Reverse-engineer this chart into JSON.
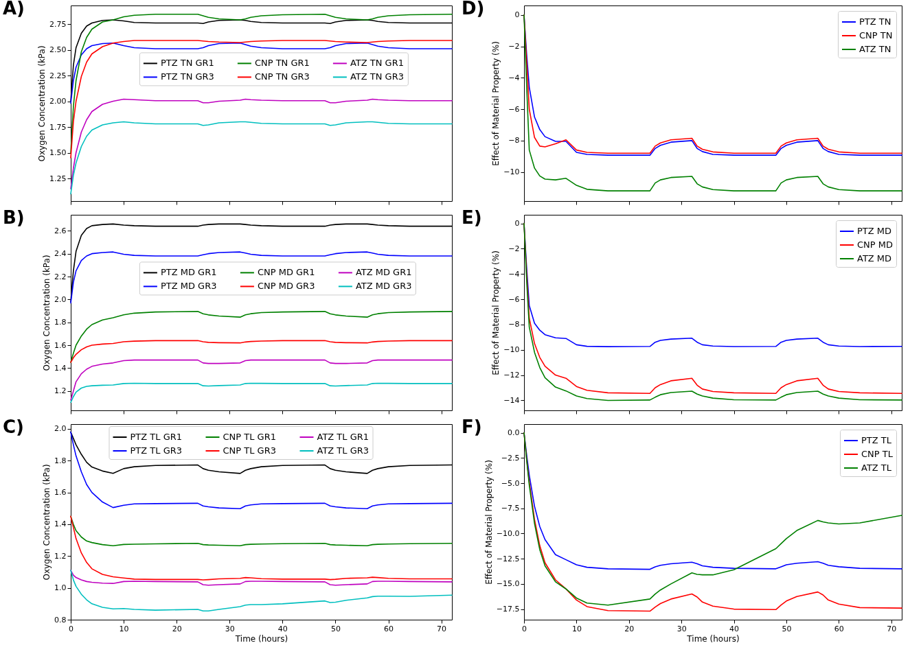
{
  "chart_data": [
    {
      "type": "line",
      "title": "A)",
      "ylabel": "Oxygen Concentration (kPa)",
      "legend": "center",
      "tick_labels": "y",
      "x": [
        0,
        0.5,
        1,
        2,
        3,
        4,
        6,
        8,
        10,
        12,
        16,
        24,
        25,
        26,
        28,
        32,
        33,
        34,
        36,
        40,
        48,
        49,
        50,
        52,
        56,
        57,
        58,
        60,
        64,
        72
      ],
      "xlim": [
        0,
        72
      ],
      "xticks": [
        {
          "value": 0,
          "label": null
        },
        {
          "value": 10,
          "label": null
        },
        {
          "value": 20,
          "label": null
        },
        {
          "value": 30,
          "label": null
        },
        {
          "value": 40,
          "label": null
        },
        {
          "value": 50,
          "label": null
        },
        {
          "value": 60,
          "label": null
        },
        {
          "value": 70,
          "label": null
        }
      ],
      "ylim": [
        1.03,
        2.93
      ],
      "yticks": [
        1.25,
        {
          "value": 1.5,
          "label": "1.50"
        },
        1.75,
        {
          "value": 2,
          "label": "2.00"
        },
        2.25,
        {
          "value": 2.5,
          "label": "2.50"
        },
        2.75
      ],
      "series": [
        {
          "name": "PTZ TN GR1",
          "color": "#000000",
          "values": [
            2.0,
            2.35,
            2.52,
            2.66,
            2.73,
            2.76,
            2.785,
            2.79,
            2.78,
            2.765,
            2.76,
            2.76,
            2.755,
            2.77,
            2.785,
            2.79,
            2.785,
            2.775,
            2.765,
            2.76,
            2.76,
            2.755,
            2.77,
            2.785,
            2.79,
            2.785,
            2.775,
            2.765,
            2.76,
            2.76
          ]
        },
        {
          "name": "PTZ TN GR3",
          "color": "#0000ff",
          "values": [
            1.98,
            2.2,
            2.33,
            2.45,
            2.51,
            2.54,
            2.56,
            2.565,
            2.54,
            2.52,
            2.51,
            2.51,
            2.52,
            2.54,
            2.56,
            2.565,
            2.55,
            2.535,
            2.52,
            2.51,
            2.51,
            2.52,
            2.54,
            2.56,
            2.565,
            2.55,
            2.535,
            2.52,
            2.51,
            2.51
          ]
        },
        {
          "name": "CNP TN GR1",
          "color": "#008000",
          "values": [
            1.5,
            1.95,
            2.2,
            2.48,
            2.62,
            2.7,
            2.77,
            2.79,
            2.82,
            2.835,
            2.845,
            2.845,
            2.83,
            2.815,
            2.8,
            2.79,
            2.8,
            2.815,
            2.83,
            2.84,
            2.845,
            2.83,
            2.815,
            2.8,
            2.79,
            2.8,
            2.815,
            2.83,
            2.84,
            2.845
          ]
        },
        {
          "name": "CNP TN GR3",
          "color": "#ff0000",
          "values": [
            1.45,
            1.8,
            2.0,
            2.24,
            2.38,
            2.46,
            2.53,
            2.565,
            2.58,
            2.59,
            2.59,
            2.59,
            2.585,
            2.58,
            2.575,
            2.57,
            2.575,
            2.58,
            2.585,
            2.59,
            2.59,
            2.585,
            2.58,
            2.575,
            2.57,
            2.575,
            2.58,
            2.585,
            2.59,
            2.59
          ]
        },
        {
          "name": "ATZ TN GR1",
          "color": "#bf00bf",
          "values": [
            1.15,
            1.35,
            1.5,
            1.7,
            1.82,
            1.9,
            1.97,
            2.0,
            2.02,
            2.015,
            2.005,
            2.005,
            1.985,
            1.985,
            2.0,
            2.01,
            2.02,
            2.015,
            2.01,
            2.005,
            2.005,
            1.985,
            1.985,
            2.0,
            2.01,
            2.02,
            2.015,
            2.01,
            2.005,
            2.005
          ]
        },
        {
          "name": "ATZ TN GR3",
          "color": "#00bfbf",
          "values": [
            1.1,
            1.28,
            1.4,
            1.56,
            1.66,
            1.72,
            1.77,
            1.79,
            1.8,
            1.79,
            1.78,
            1.78,
            1.765,
            1.77,
            1.79,
            1.8,
            1.8,
            1.795,
            1.785,
            1.78,
            1.78,
            1.765,
            1.77,
            1.79,
            1.8,
            1.8,
            1.795,
            1.785,
            1.78,
            1.78
          ]
        }
      ]
    },
    {
      "type": "line",
      "title": "D)",
      "ylabel": "Effect of Material Property (%)",
      "legend": "top right",
      "tick_labels": "y",
      "x": [
        0,
        0.5,
        1,
        2,
        3,
        4,
        6,
        8,
        10,
        12,
        16,
        24,
        25,
        26,
        28,
        32,
        33,
        34,
        36,
        40,
        48,
        49,
        50,
        52,
        56,
        57,
        58,
        60,
        64,
        72
      ],
      "xlim": [
        0,
        72
      ],
      "xticks": [
        {
          "value": 0,
          "label": null
        },
        {
          "value": 10,
          "label": null
        },
        {
          "value": 20,
          "label": null
        },
        {
          "value": 30,
          "label": null
        },
        {
          "value": 40,
          "label": null
        },
        {
          "value": 50,
          "label": null
        },
        {
          "value": 60,
          "label": null
        },
        {
          "value": 70,
          "label": null
        }
      ],
      "ylim": [
        -11.85,
        0.6
      ],
      "yticks": [
        {
          "value": -10,
          "label": "−10"
        },
        {
          "value": -8,
          "label": "−8"
        },
        {
          "value": -6,
          "label": "−6"
        },
        {
          "value": -4,
          "label": "−4"
        },
        {
          "value": -2,
          "label": "−2"
        },
        0
      ],
      "series": [
        {
          "name": "PTZ TN",
          "color": "#0000ff",
          "values": [
            0,
            -2.5,
            -4.6,
            -6.5,
            -7.3,
            -7.75,
            -8.05,
            -8.05,
            -8.75,
            -8.88,
            -8.93,
            -8.93,
            -8.5,
            -8.3,
            -8.1,
            -8.0,
            -8.5,
            -8.7,
            -8.88,
            -8.93,
            -8.93,
            -8.5,
            -8.3,
            -8.1,
            -8.0,
            -8.5,
            -8.7,
            -8.88,
            -8.93,
            -8.93
          ]
        },
        {
          "name": "CNP TN",
          "color": "#ff0000",
          "values": [
            0,
            -3.0,
            -6.0,
            -7.8,
            -8.35,
            -8.4,
            -8.2,
            -7.95,
            -8.6,
            -8.75,
            -8.8,
            -8.8,
            -8.35,
            -8.15,
            -7.95,
            -7.85,
            -8.35,
            -8.55,
            -8.72,
            -8.8,
            -8.8,
            -8.35,
            -8.15,
            -7.95,
            -7.85,
            -8.35,
            -8.55,
            -8.72,
            -8.8,
            -8.8
          ]
        },
        {
          "name": "ATZ TN",
          "color": "#008000",
          "values": [
            0,
            -4.5,
            -8.6,
            -9.75,
            -10.25,
            -10.45,
            -10.5,
            -10.4,
            -10.85,
            -11.1,
            -11.2,
            -11.2,
            -10.7,
            -10.5,
            -10.35,
            -10.28,
            -10.75,
            -10.95,
            -11.12,
            -11.2,
            -11.2,
            -10.7,
            -10.5,
            -10.35,
            -10.28,
            -10.75,
            -10.95,
            -11.12,
            -11.2,
            -11.2
          ]
        }
      ]
    },
    {
      "type": "line",
      "title": "B)",
      "ylabel": "Oxygen Concentration (kPa)",
      "legend": "center",
      "tick_labels": "y",
      "x": [
        0,
        0.5,
        1,
        2,
        3,
        4,
        6,
        8,
        10,
        12,
        16,
        24,
        25,
        26,
        28,
        32,
        33,
        34,
        36,
        40,
        48,
        49,
        50,
        52,
        56,
        57,
        58,
        60,
        64,
        72
      ],
      "xlim": [
        0,
        72
      ],
      "xticks": [
        {
          "value": 0,
          "label": null
        },
        {
          "value": 10,
          "label": null
        },
        {
          "value": 20,
          "label": null
        },
        {
          "value": 30,
          "label": null
        },
        {
          "value": 40,
          "label": null
        },
        {
          "value": 50,
          "label": null
        },
        {
          "value": 60,
          "label": null
        },
        {
          "value": 70,
          "label": null
        }
      ],
      "ylim": [
        1.03,
        2.74
      ],
      "yticks": [
        1.2,
        1.4,
        1.6,
        1.8,
        {
          "value": 2,
          "label": "2.0"
        },
        2.2,
        2.4,
        2.6
      ],
      "series": [
        {
          "name": "PTZ MD GR1",
          "color": "#000000",
          "values": [
            1.98,
            2.25,
            2.42,
            2.56,
            2.62,
            2.645,
            2.655,
            2.66,
            2.65,
            2.645,
            2.64,
            2.64,
            2.65,
            2.655,
            2.66,
            2.66,
            2.655,
            2.65,
            2.645,
            2.64,
            2.64,
            2.65,
            2.655,
            2.66,
            2.66,
            2.655,
            2.65,
            2.645,
            2.64,
            2.64
          ]
        },
        {
          "name": "PTZ MD GR3",
          "color": "#0000ff",
          "values": [
            1.97,
            2.15,
            2.25,
            2.34,
            2.38,
            2.4,
            2.41,
            2.415,
            2.395,
            2.385,
            2.38,
            2.38,
            2.39,
            2.4,
            2.41,
            2.415,
            2.405,
            2.395,
            2.385,
            2.38,
            2.38,
            2.39,
            2.4,
            2.41,
            2.415,
            2.405,
            2.395,
            2.385,
            2.38,
            2.38
          ]
        },
        {
          "name": "CNP MD GR1",
          "color": "#008000",
          "values": [
            1.45,
            1.53,
            1.6,
            1.68,
            1.74,
            1.78,
            1.82,
            1.84,
            1.865,
            1.88,
            1.89,
            1.895,
            1.875,
            1.865,
            1.855,
            1.845,
            1.865,
            1.875,
            1.885,
            1.89,
            1.895,
            1.875,
            1.865,
            1.855,
            1.845,
            1.865,
            1.875,
            1.885,
            1.89,
            1.895
          ]
        },
        {
          "name": "CNP MD GR3",
          "color": "#ff0000",
          "values": [
            1.45,
            1.49,
            1.52,
            1.56,
            1.585,
            1.6,
            1.61,
            1.615,
            1.63,
            1.635,
            1.64,
            1.64,
            1.63,
            1.625,
            1.622,
            1.62,
            1.628,
            1.632,
            1.636,
            1.64,
            1.64,
            1.63,
            1.625,
            1.622,
            1.62,
            1.628,
            1.632,
            1.636,
            1.64,
            1.64
          ]
        },
        {
          "name": "ATZ MD GR1",
          "color": "#bf00bf",
          "values": [
            1.12,
            1.2,
            1.28,
            1.35,
            1.39,
            1.415,
            1.435,
            1.445,
            1.465,
            1.47,
            1.47,
            1.47,
            1.445,
            1.44,
            1.44,
            1.445,
            1.465,
            1.47,
            1.47,
            1.47,
            1.47,
            1.445,
            1.44,
            1.44,
            1.445,
            1.465,
            1.47,
            1.47,
            1.47,
            1.47
          ]
        },
        {
          "name": "ATZ MD GR3",
          "color": "#00bfbf",
          "values": [
            1.1,
            1.15,
            1.19,
            1.225,
            1.24,
            1.245,
            1.25,
            1.252,
            1.265,
            1.267,
            1.265,
            1.265,
            1.245,
            1.243,
            1.247,
            1.252,
            1.265,
            1.267,
            1.266,
            1.265,
            1.265,
            1.245,
            1.243,
            1.247,
            1.252,
            1.265,
            1.267,
            1.266,
            1.265,
            1.265
          ]
        }
      ]
    },
    {
      "type": "line",
      "title": "E)",
      "ylabel": "Effect of Material Property (%)",
      "legend": "top right",
      "tick_labels": "y",
      "x": [
        0,
        0.5,
        1,
        2,
        3,
        4,
        6,
        8,
        10,
        12,
        16,
        24,
        25,
        26,
        28,
        32,
        33,
        34,
        36,
        40,
        48,
        49,
        50,
        52,
        56,
        57,
        58,
        60,
        64,
        72
      ],
      "xlim": [
        0,
        72
      ],
      "xticks": [
        {
          "value": 0,
          "label": null
        },
        {
          "value": 10,
          "label": null
        },
        {
          "value": 20,
          "label": null
        },
        {
          "value": 30,
          "label": null
        },
        {
          "value": 40,
          "label": null
        },
        {
          "value": 50,
          "label": null
        },
        {
          "value": 60,
          "label": null
        },
        {
          "value": 70,
          "label": null
        }
      ],
      "ylim": [
        -14.79,
        0.68
      ],
      "yticks": [
        {
          "value": -14,
          "label": "−14"
        },
        {
          "value": -12,
          "label": "−12"
        },
        {
          "value": -10,
          "label": "−10"
        },
        {
          "value": -8,
          "label": "−8"
        },
        {
          "value": -6,
          "label": "−6"
        },
        {
          "value": -4,
          "label": "−4"
        },
        {
          "value": -2,
          "label": "−2"
        },
        0
      ],
      "series": [
        {
          "name": "PTZ MD",
          "color": "#0000ff",
          "values": [
            0,
            -3.5,
            -6.5,
            -7.9,
            -8.45,
            -8.8,
            -9.05,
            -9.1,
            -9.6,
            -9.72,
            -9.75,
            -9.73,
            -9.4,
            -9.25,
            -9.15,
            -9.08,
            -9.4,
            -9.6,
            -9.7,
            -9.74,
            -9.73,
            -9.4,
            -9.25,
            -9.15,
            -9.08,
            -9.4,
            -9.6,
            -9.7,
            -9.74,
            -9.73
          ]
        },
        {
          "name": "CNP MD",
          "color": "#ff0000",
          "values": [
            0,
            -4.0,
            -7.5,
            -9.5,
            -10.6,
            -11.3,
            -12.0,
            -12.25,
            -12.9,
            -13.2,
            -13.4,
            -13.45,
            -13.0,
            -12.75,
            -12.45,
            -12.25,
            -12.8,
            -13.1,
            -13.3,
            -13.4,
            -13.45,
            -13.0,
            -12.75,
            -12.45,
            -12.25,
            -12.8,
            -13.1,
            -13.3,
            -13.4,
            -13.45
          ]
        },
        {
          "name": "ATZ MD",
          "color": "#008000",
          "values": [
            0,
            -4.5,
            -8.2,
            -10.2,
            -11.4,
            -12.2,
            -12.95,
            -13.25,
            -13.65,
            -13.85,
            -14.0,
            -13.97,
            -13.75,
            -13.55,
            -13.38,
            -13.27,
            -13.5,
            -13.65,
            -13.82,
            -13.95,
            -13.97,
            -13.75,
            -13.55,
            -13.38,
            -13.27,
            -13.5,
            -13.65,
            -13.82,
            -13.95,
            -13.97
          ]
        }
      ]
    },
    {
      "type": "line",
      "title": "C)",
      "xlabel": "Time (hours)",
      "ylabel": "Oxygen Concentration (kPa)",
      "legend": "top",
      "x": [
        0,
        0.5,
        1,
        2,
        3,
        4,
        6,
        8,
        10,
        12,
        16,
        24,
        25,
        26,
        28,
        32,
        33,
        34,
        36,
        40,
        48,
        49,
        50,
        52,
        56,
        57,
        58,
        60,
        64,
        72
      ],
      "xlim": [
        0,
        72
      ],
      "xticks": [
        0,
        10,
        20,
        30,
        40,
        50,
        60,
        70
      ],
      "ylim": [
        0.8,
        2.03
      ],
      "yticks": [
        0.8,
        {
          "value": 1,
          "label": "1.0"
        },
        1.2,
        1.4,
        1.6,
        1.8,
        {
          "value": 2,
          "label": "2.0"
        }
      ],
      "series": [
        {
          "name": "PTZ TL GR1",
          "color": "#000000",
          "values": [
            1.98,
            1.94,
            1.9,
            1.84,
            1.79,
            1.76,
            1.735,
            1.72,
            1.75,
            1.762,
            1.77,
            1.773,
            1.75,
            1.74,
            1.73,
            1.72,
            1.74,
            1.75,
            1.762,
            1.77,
            1.773,
            1.75,
            1.74,
            1.73,
            1.72,
            1.74,
            1.75,
            1.762,
            1.77,
            1.773
          ]
        },
        {
          "name": "PTZ TL GR3",
          "color": "#0000ff",
          "values": [
            1.98,
            1.9,
            1.83,
            1.73,
            1.65,
            1.6,
            1.54,
            1.505,
            1.52,
            1.528,
            1.53,
            1.532,
            1.515,
            1.51,
            1.503,
            1.498,
            1.515,
            1.522,
            1.528,
            1.53,
            1.532,
            1.515,
            1.51,
            1.503,
            1.498,
            1.515,
            1.522,
            1.528,
            1.53,
            1.532
          ]
        },
        {
          "name": "CNP TL GR1",
          "color": "#008000",
          "values": [
            1.45,
            1.4,
            1.36,
            1.32,
            1.295,
            1.285,
            1.272,
            1.265,
            1.273,
            1.275,
            1.277,
            1.28,
            1.272,
            1.27,
            1.268,
            1.265,
            1.272,
            1.274,
            1.276,
            1.278,
            1.28,
            1.272,
            1.27,
            1.268,
            1.265,
            1.272,
            1.274,
            1.276,
            1.278,
            1.28
          ]
        },
        {
          "name": "CNP TL GR3",
          "color": "#ff0000",
          "values": [
            1.45,
            1.38,
            1.31,
            1.22,
            1.16,
            1.12,
            1.085,
            1.07,
            1.062,
            1.055,
            1.053,
            1.053,
            1.05,
            1.052,
            1.057,
            1.06,
            1.065,
            1.063,
            1.058,
            1.055,
            1.055,
            1.052,
            1.054,
            1.06,
            1.063,
            1.067,
            1.065,
            1.06,
            1.057,
            1.057
          ]
        },
        {
          "name": "ATZ TL GR1",
          "color": "#bf00bf",
          "values": [
            1.11,
            1.08,
            1.065,
            1.05,
            1.04,
            1.035,
            1.03,
            1.028,
            1.04,
            1.042,
            1.04,
            1.038,
            1.02,
            1.017,
            1.02,
            1.025,
            1.04,
            1.042,
            1.042,
            1.04,
            1.038,
            1.02,
            1.017,
            1.02,
            1.025,
            1.04,
            1.042,
            1.042,
            1.04,
            1.038
          ]
        },
        {
          "name": "ATZ TL GR3",
          "color": "#00bfbf",
          "values": [
            1.11,
            1.05,
            1.01,
            0.96,
            0.925,
            0.9,
            0.878,
            0.868,
            0.87,
            0.865,
            0.86,
            0.865,
            0.855,
            0.855,
            0.865,
            0.882,
            0.892,
            0.895,
            0.895,
            0.9,
            0.918,
            0.908,
            0.91,
            0.922,
            0.937,
            0.945,
            0.948,
            0.948,
            0.947,
            0.954
          ]
        }
      ]
    },
    {
      "type": "line",
      "title": "F)",
      "xlabel": "Time (hours)",
      "ylabel": "Effect of Material Property (%)",
      "legend": "top right",
      "x": [
        0,
        0.5,
        1,
        2,
        3,
        4,
        6,
        8,
        10,
        12,
        16,
        24,
        25,
        26,
        28,
        32,
        33,
        34,
        36,
        40,
        48,
        49,
        50,
        52,
        56,
        57,
        58,
        60,
        64,
        72
      ],
      "xlim": [
        0,
        72
      ],
      "xticks": [
        0,
        10,
        20,
        30,
        40,
        50,
        60,
        70
      ],
      "ylim": [
        -18.55,
        0.86
      ],
      "yticks": [
        {
          "value": -17.5,
          "label": "−17.5"
        },
        {
          "value": -15,
          "label": "−15.0"
        },
        {
          "value": -12.5,
          "label": "−12.5"
        },
        {
          "value": -10,
          "label": "−10.0"
        },
        {
          "value": -7.5,
          "label": "−7.5"
        },
        {
          "value": -5,
          "label": "−5.0"
        },
        {
          "value": -2.5,
          "label": "−2.5"
        },
        {
          "value": 0,
          "label": "0.0"
        }
      ],
      "series": [
        {
          "name": "PTZ TL",
          "color": "#0000ff",
          "values": [
            0,
            -2.2,
            -4.2,
            -7.3,
            -9.3,
            -10.6,
            -12.1,
            -12.6,
            -13.1,
            -13.35,
            -13.5,
            -13.55,
            -13.3,
            -13.15,
            -13.0,
            -12.85,
            -13.0,
            -13.2,
            -13.35,
            -13.45,
            -13.5,
            -13.3,
            -13.1,
            -12.95,
            -12.8,
            -12.95,
            -13.15,
            -13.3,
            -13.45,
            -13.5
          ]
        },
        {
          "name": "CNP TL",
          "color": "#ff0000",
          "values": [
            0,
            -2.6,
            -4.9,
            -8.6,
            -11.2,
            -12.9,
            -14.6,
            -15.5,
            -16.6,
            -17.25,
            -17.65,
            -17.7,
            -17.3,
            -16.95,
            -16.5,
            -16.0,
            -16.3,
            -16.8,
            -17.2,
            -17.5,
            -17.55,
            -17.1,
            -16.7,
            -16.25,
            -15.8,
            -16.1,
            -16.6,
            -17.0,
            -17.35,
            -17.4
          ]
        },
        {
          "name": "ATZ TL",
          "color": "#008000",
          "values": [
            0,
            -2.7,
            -5.2,
            -9.0,
            -11.6,
            -13.2,
            -14.8,
            -15.5,
            -16.4,
            -16.9,
            -17.1,
            -16.5,
            -16.0,
            -15.6,
            -15.0,
            -13.9,
            -14.05,
            -14.1,
            -14.1,
            -13.6,
            -11.5,
            -11.0,
            -10.5,
            -9.7,
            -8.7,
            -8.85,
            -8.95,
            -9.05,
            -8.95,
            -8.2
          ]
        }
      ]
    }
  ]
}
